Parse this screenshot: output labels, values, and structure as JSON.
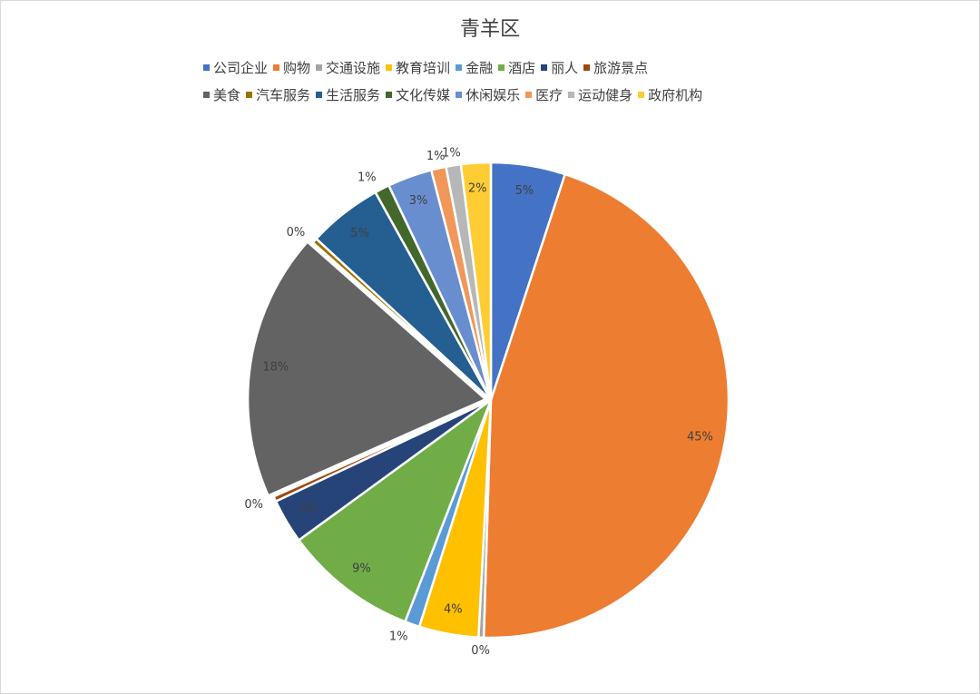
{
  "chart_data": {
    "type": "pie",
    "title": "青羊区",
    "legend_position": "top",
    "slices": [
      {
        "label": "公司企业",
        "value": 5,
        "display": "5%",
        "color": "#4472C4"
      },
      {
        "label": "购物",
        "value": 45,
        "display": "45%",
        "color": "#ED7D31"
      },
      {
        "label": "交通设施",
        "value": 0,
        "display": "0%",
        "color": "#A5A5A5"
      },
      {
        "label": "教育培训",
        "value": 4,
        "display": "4%",
        "color": "#FFC000"
      },
      {
        "label": "金融",
        "value": 1,
        "display": "1%",
        "color": "#5B9BD5"
      },
      {
        "label": "酒店",
        "value": 9,
        "display": "9%",
        "color": "#70AD47"
      },
      {
        "label": "丽人",
        "value": 3,
        "display": "3%",
        "color": "#264478"
      },
      {
        "label": "旅游景点",
        "value": 0,
        "display": "0%",
        "color": "#9E480E"
      },
      {
        "label": "美食",
        "value": 18,
        "display": "18%",
        "color": "#636363"
      },
      {
        "label": "汽车服务",
        "value": 0,
        "display": "0%",
        "color": "#997300"
      },
      {
        "label": "生活服务",
        "value": 5,
        "display": "5%",
        "color": "#255E91"
      },
      {
        "label": "文化传媒",
        "value": 1,
        "display": "1%",
        "color": "#43682B"
      },
      {
        "label": "休闲娱乐",
        "value": 3,
        "display": "3%",
        "color": "#698ED0"
      },
      {
        "label": "医疗",
        "value": 1,
        "display": "1%",
        "color": "#F1975A"
      },
      {
        "label": "运动健身",
        "value": 1,
        "display": "1%",
        "color": "#B7B7B7"
      },
      {
        "label": "政府机构",
        "value": 2,
        "display": "2%",
        "color": "#FFCD33"
      }
    ]
  }
}
